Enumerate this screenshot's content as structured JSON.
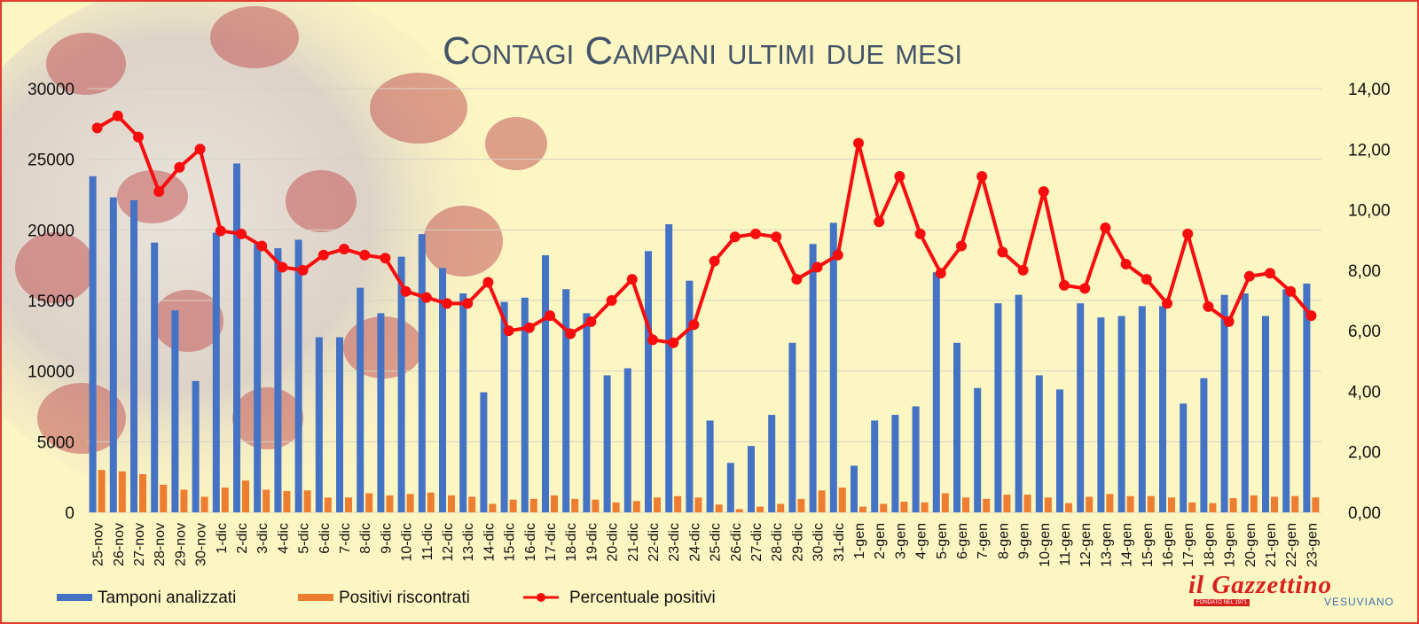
{
  "chart_data": {
    "type": "bar",
    "title": "Contagi Campani ultimi due mesi",
    "categories": [
      "25-nov",
      "26-nov",
      "27-nov",
      "28-nov",
      "29-nov",
      "30-nov",
      "1-dic",
      "2-dic",
      "3-dic",
      "4-dic",
      "5-dic",
      "6-dic",
      "7-dic",
      "8-dic",
      "9-dic",
      "10-dic",
      "11-dic",
      "12-dic",
      "13-dic",
      "14-dic",
      "15-dic",
      "16-dic",
      "17-dic",
      "18-dic",
      "19-dic",
      "20-dic",
      "21-dic",
      "22-dic",
      "23-dic",
      "24-dic",
      "25-dic",
      "26-dic",
      "27-dic",
      "28-dic",
      "29-dic",
      "30-dic",
      "31-dic",
      "1-gen",
      "2-gen",
      "3-gen",
      "4-gen",
      "5-gen",
      "6-gen",
      "7-gen",
      "8-gen",
      "9-gen",
      "10-gen",
      "11-gen",
      "12-gen",
      "13-gen",
      "14-gen",
      "15-gen",
      "16-gen",
      "17-gen",
      "18-gen",
      "19-gen",
      "20-gen",
      "21-gen",
      "22-gen",
      "23-gen"
    ],
    "series": [
      {
        "name": "Tamponi analizzati",
        "kind": "bar",
        "axis": "left",
        "color": "#4472c4",
        "values": [
          23800,
          22300,
          22100,
          19100,
          14300,
          9300,
          19800,
          24700,
          19000,
          18700,
          19300,
          12400,
          12400,
          15900,
          14100,
          18100,
          19700,
          17300,
          15500,
          8500,
          14900,
          15200,
          18200,
          15800,
          14100,
          9700,
          10200,
          18500,
          20400,
          16400,
          6500,
          3500,
          4700,
          6900,
          12000,
          19000,
          20500,
          3300,
          6500,
          6900,
          7500,
          17000,
          12000,
          8800,
          14800,
          15400,
          9700,
          8700,
          14800,
          13800,
          13900,
          14600,
          14600,
          7700,
          9500,
          15400,
          15500,
          13900,
          15800,
          16200
        ]
      },
      {
        "name": "Positivi riscontrati",
        "kind": "bar",
        "axis": "left",
        "color": "#ed7d31",
        "values": [
          3000,
          2900,
          2700,
          1950,
          1600,
          1100,
          1750,
          2250,
          1600,
          1500,
          1550,
          1050,
          1050,
          1350,
          1200,
          1300,
          1400,
          1200,
          1100,
          600,
          900,
          950,
          1200,
          950,
          900,
          700,
          800,
          1050,
          1150,
          1050,
          550,
          230,
          400,
          600,
          950,
          1550,
          1750,
          400,
          600,
          750,
          700,
          1350,
          1050,
          950,
          1250,
          1250,
          1050,
          650,
          1100,
          1300,
          1150,
          1150,
          1050,
          700,
          650,
          1000,
          1200,
          1100,
          1150,
          1050
        ]
      },
      {
        "name": "Percentuale positivi",
        "kind": "line",
        "axis": "right",
        "color": "#f70d0d",
        "values": [
          12.7,
          13.1,
          12.4,
          10.6,
          11.4,
          12.0,
          9.3,
          9.2,
          8.8,
          8.1,
          8.0,
          8.5,
          8.7,
          8.5,
          8.4,
          7.3,
          7.1,
          6.9,
          6.9,
          7.6,
          6.0,
          6.1,
          6.5,
          5.9,
          6.3,
          7.0,
          7.7,
          5.7,
          5.6,
          6.2,
          8.3,
          9.1,
          9.2,
          9.1,
          7.7,
          8.1,
          8.5,
          12.2,
          9.6,
          11.1,
          9.2,
          7.9,
          8.8,
          11.1,
          8.6,
          8.0,
          10.6,
          7.5,
          7.4,
          9.4,
          8.2,
          7.7,
          6.9,
          9.2,
          6.8,
          6.3,
          7.8,
          7.9,
          7.3,
          6.5
        ]
      }
    ],
    "y_left": {
      "min": 0,
      "max": 30000,
      "ticks": [
        "0",
        "5000",
        "10000",
        "15000",
        "20000",
        "25000",
        "30000"
      ]
    },
    "y_right": {
      "min": 0,
      "max": 14,
      "ticks": [
        "0,00",
        "2,00",
        "4,00",
        "6,00",
        "8,00",
        "10,00",
        "12,00",
        "14,00"
      ]
    },
    "grid": true,
    "legend_position": "bottom"
  },
  "branding": {
    "logo_text": "il Gazzettino",
    "logo_tagline": "FONDATO NEL 1971",
    "logo_subtext": "VESUVIANO"
  }
}
